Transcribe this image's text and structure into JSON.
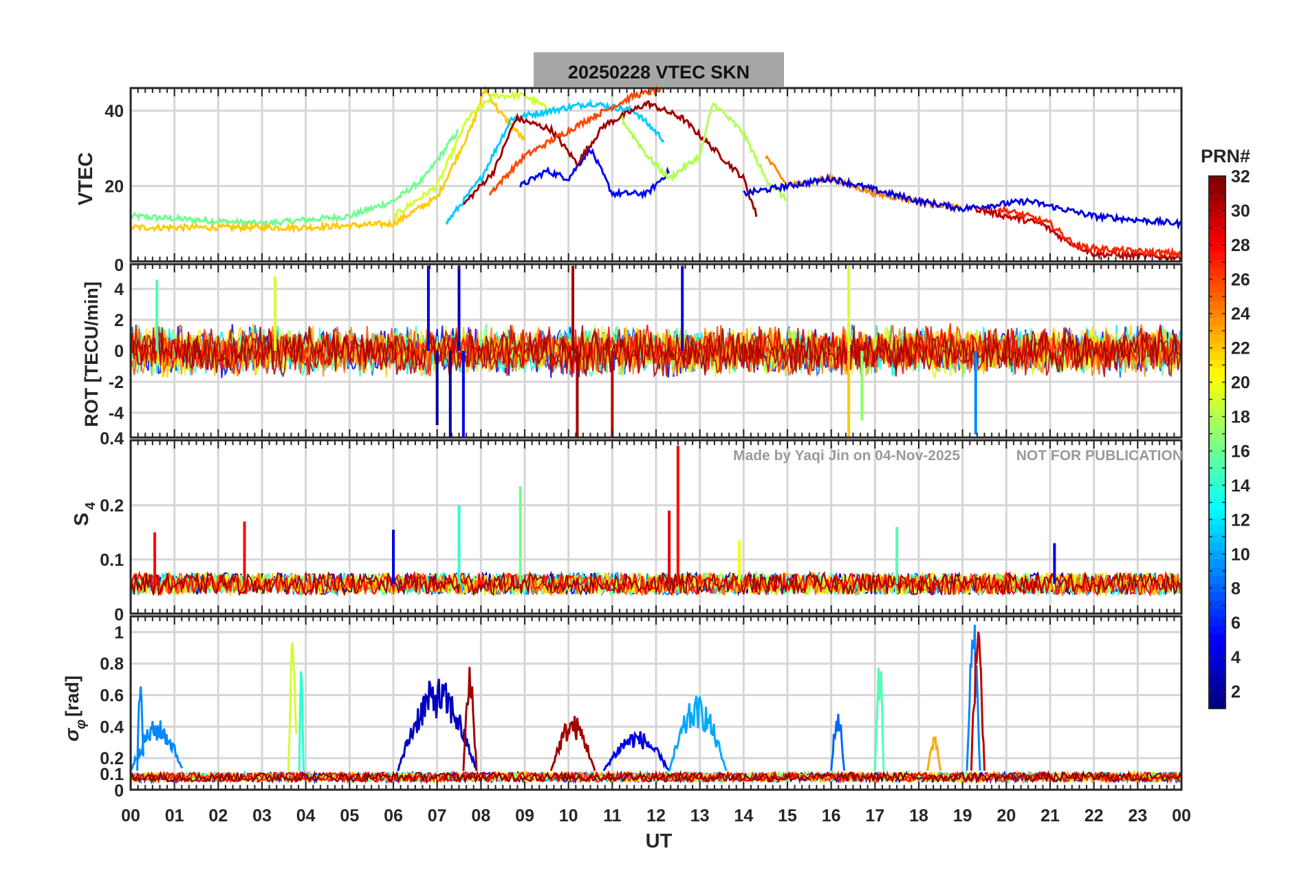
{
  "chart_data": [
    {
      "id": "vtec",
      "type": "line",
      "ylabel": "VTEC",
      "ylim": [
        0,
        46
      ],
      "yticks": [
        20,
        40
      ],
      "description_series": [
        {
          "name": "morning-rise",
          "prn": 16,
          "points": [
            [
              0,
              12
            ],
            [
              3,
              10
            ],
            [
              5,
              12
            ],
            [
              6,
              16
            ],
            [
              6.7,
              22
            ],
            [
              7.5,
              35
            ]
          ]
        },
        {
          "name": "prn-22-arc",
          "prn": 22,
          "points": [
            [
              0,
              9
            ],
            [
              2,
              9
            ],
            [
              4,
              9
            ],
            [
              6,
              10
            ],
            [
              7,
              17
            ],
            [
              7.8,
              36
            ],
            [
              8.1,
              46
            ],
            [
              8.4,
              40
            ],
            [
              9,
              32
            ]
          ]
        },
        {
          "name": "prn-19-arc",
          "prn": 19,
          "points": [
            [
              6,
              12
            ],
            [
              7,
              20
            ],
            [
              7.7,
              38
            ],
            [
              8.3,
              44
            ],
            [
              9,
              44
            ],
            [
              9.6,
              40
            ]
          ]
        },
        {
          "name": "prn-11-arc",
          "prn": 11,
          "points": [
            [
              7.2,
              10
            ],
            [
              8,
              22
            ],
            [
              8.7,
              38
            ],
            [
              9.6,
              40
            ],
            [
              10.5,
              42
            ],
            [
              11.5,
              40
            ],
            [
              12.2,
              32
            ]
          ]
        },
        {
          "name": "prn-5-arc",
          "prn": 5,
          "points": [
            [
              8.9,
              20
            ],
            [
              9.5,
              24
            ],
            [
              10,
              22
            ],
            [
              10.5,
              30
            ],
            [
              11,
              18
            ],
            [
              11.8,
              18
            ],
            [
              12.3,
              24
            ]
          ]
        },
        {
          "name": "prn-31-arc",
          "prn": 31,
          "points": [
            [
              7.6,
              15
            ],
            [
              8.3,
              24
            ],
            [
              8.8,
              38
            ],
            [
              9.6,
              35
            ],
            [
              10.2,
              26
            ],
            [
              10.8,
              36
            ],
            [
              11.8,
              42
            ],
            [
              12.6,
              38
            ],
            [
              13.3,
              30
            ],
            [
              14,
              22
            ],
            [
              14.3,
              12
            ]
          ]
        },
        {
          "name": "prn-26-arc",
          "prn": 26,
          "points": [
            [
              8.2,
              18
            ],
            [
              9,
              28
            ],
            [
              9.6,
              32
            ],
            [
              10.5,
              38
            ],
            [
              11.5,
              44
            ],
            [
              12.3,
              46
            ]
          ]
        },
        {
          "name": "prn-18-arc",
          "prn": 18,
          "points": [
            [
              11.2,
              38
            ],
            [
              11.8,
              28
            ],
            [
              12.3,
              22
            ],
            [
              13,
              28
            ],
            [
              13.3,
              42
            ],
            [
              14,
              34
            ],
            [
              14.5,
              22
            ],
            [
              15,
              16
            ]
          ]
        },
        {
          "name": "prn-24-arc",
          "prn": 24,
          "points": [
            [
              14.5,
              28
            ],
            [
              15,
              20
            ],
            [
              16,
              22
            ],
            [
              17,
              18
            ],
            [
              18,
              16
            ],
            [
              19,
              14
            ]
          ]
        },
        {
          "name": "afternoon-decay",
          "prn": 4,
          "points": [
            [
              14,
              18
            ],
            [
              16,
              22
            ],
            [
              18,
              16
            ],
            [
              19,
              14
            ],
            [
              20.5,
              16
            ],
            [
              22,
              12
            ],
            [
              24,
              10
            ]
          ]
        },
        {
          "name": "prn-30-arc",
          "prn": 30,
          "points": [
            [
              19.3,
              14
            ],
            [
              20,
              12
            ],
            [
              20.8,
              10
            ],
            [
              21.3,
              6
            ],
            [
              22,
              2
            ],
            [
              24,
              1
            ]
          ]
        },
        {
          "name": "prn-27-arc",
          "prn": 27,
          "points": [
            [
              19.8,
              14
            ],
            [
              20.5,
              12
            ],
            [
              21,
              10
            ],
            [
              21.6,
              4
            ],
            [
              22.5,
              3
            ],
            [
              24,
              2
            ]
          ]
        }
      ]
    },
    {
      "id": "rot",
      "type": "line",
      "ylabel": "ROT [TECU/min]",
      "ylim": [
        -5.6,
        5.6
      ],
      "yticks": [
        -4,
        -2,
        0,
        2,
        4
      ],
      "top_tick": "0",
      "bottom_tick": "0.4",
      "noise_amplitude": 1.2,
      "spikes": [
        {
          "t": 6.8,
          "v": 5.5,
          "prn": 4
        },
        {
          "t": 7.0,
          "v": -4.8,
          "prn": 2
        },
        {
          "t": 7.3,
          "v": -5.6,
          "prn": 2
        },
        {
          "t": 7.5,
          "v": 5.5,
          "prn": 3
        },
        {
          "t": 7.6,
          "v": -5.6,
          "prn": 4
        },
        {
          "t": 10.1,
          "v": 5.5,
          "prn": 31
        },
        {
          "t": 10.2,
          "v": -5.6,
          "prn": 31
        },
        {
          "t": 11.0,
          "v": -5.6,
          "prn": 30
        },
        {
          "t": 12.6,
          "v": 5.5,
          "prn": 4
        },
        {
          "t": 16.4,
          "v": 5.5,
          "prn": 19
        },
        {
          "t": 16.4,
          "v": -5.6,
          "prn": 22
        },
        {
          "t": 16.7,
          "v": -4.5,
          "prn": 17
        },
        {
          "t": 19.3,
          "v": -5.4,
          "prn": 9
        },
        {
          "t": 3.3,
          "v": 4.8,
          "prn": 19
        },
        {
          "t": 0.6,
          "v": 4.6,
          "prn": 15
        }
      ]
    },
    {
      "id": "s4",
      "type": "line",
      "ylabel": "S4",
      "ylim": [
        0,
        0.32
      ],
      "yticks": [
        0.1,
        0.2
      ],
      "bottom_tick": "0",
      "baseline": 0.055,
      "spikes": [
        {
          "t": 0.55,
          "v": 0.15,
          "prn": 28
        },
        {
          "t": 2.6,
          "v": 0.17,
          "prn": 28
        },
        {
          "t": 6.0,
          "v": 0.155,
          "prn": 4
        },
        {
          "t": 7.5,
          "v": 0.2,
          "prn": 14
        },
        {
          "t": 8.9,
          "v": 0.235,
          "prn": 16
        },
        {
          "t": 12.5,
          "v": 0.31,
          "prn": 28
        },
        {
          "t": 12.3,
          "v": 0.19,
          "prn": 29
        },
        {
          "t": 13.9,
          "v": 0.135,
          "prn": 20
        },
        {
          "t": 17.5,
          "v": 0.16,
          "prn": 15
        },
        {
          "t": 21.1,
          "v": 0.13,
          "prn": 4
        }
      ]
    },
    {
      "id": "sigphi",
      "type": "line",
      "ylabel": "σ_φ [rad]",
      "ylim": [
        0,
        1.1
      ],
      "yticks": [
        0.1,
        0.2,
        0.4,
        0.6,
        0.8,
        1
      ],
      "bottom_tick": "0",
      "baseline": 0.08,
      "bursts": [
        {
          "t0": 0.0,
          "t1": 1.2,
          "peak": 0.45,
          "prn": 9
        },
        {
          "t0": 0.15,
          "t1": 0.3,
          "peak": 0.84,
          "prn": 9
        },
        {
          "t0": 3.6,
          "t1": 3.8,
          "peak": 1.0,
          "prn": 19
        },
        {
          "t0": 3.85,
          "t1": 3.95,
          "peak": 0.83,
          "prn": 14
        },
        {
          "t0": 6.1,
          "t1": 7.9,
          "peak": 0.72,
          "prn": 3
        },
        {
          "t0": 7.6,
          "t1": 7.9,
          "peak": 0.8,
          "prn": 31
        },
        {
          "t0": 9.6,
          "t1": 10.6,
          "peak": 0.48,
          "prn": 31
        },
        {
          "t0": 10.8,
          "t1": 12.3,
          "peak": 0.38,
          "prn": 4
        },
        {
          "t0": 12.3,
          "t1": 13.6,
          "peak": 0.6,
          "prn": 10
        },
        {
          "t0": 16.0,
          "t1": 16.3,
          "peak": 0.53,
          "prn": 8
        },
        {
          "t0": 17.0,
          "t1": 17.2,
          "peak": 0.92,
          "prn": 15
        },
        {
          "t0": 19.1,
          "t1": 19.4,
          "peak": 1.1,
          "prn": 9
        },
        {
          "t0": 19.2,
          "t1": 19.5,
          "peak": 1.1,
          "prn": 30
        },
        {
          "t0": 18.2,
          "t1": 18.5,
          "peak": 0.34,
          "prn": 23
        }
      ]
    }
  ],
  "figure": {
    "title": "20250228    VTEC  SKN",
    "xlabel": "UT",
    "xticks": [
      "00",
      "01",
      "02",
      "03",
      "04",
      "05",
      "06",
      "07",
      "08",
      "09",
      "10",
      "11",
      "12",
      "13",
      "14",
      "15",
      "16",
      "17",
      "18",
      "19",
      "20",
      "21",
      "22",
      "23",
      "00"
    ],
    "xlim": [
      0,
      24
    ],
    "watermark_left": "Made by Yaqi Jin on 04-Nov-2025",
    "watermark_right": "NOT FOR PUBLICATION",
    "colorbar": {
      "label": "PRN#",
      "range": [
        1,
        32
      ],
      "ticks": [
        "2",
        "4",
        "6",
        "8",
        "10",
        "12",
        "14",
        "16",
        "18",
        "20",
        "22",
        "24",
        "26",
        "28",
        "30",
        "32"
      ],
      "colormap": "jet"
    }
  },
  "labels": {
    "s4_main": "S",
    "s4_sub": "4",
    "sig_sym": "σ",
    "sig_sub": "φ",
    "sig_unit": "[rad]"
  },
  "colors": {
    "grid": "#d6d6d6",
    "axis": "#262626",
    "title_bg": "#a6a6a6",
    "watermark": "#9a9a9a"
  }
}
